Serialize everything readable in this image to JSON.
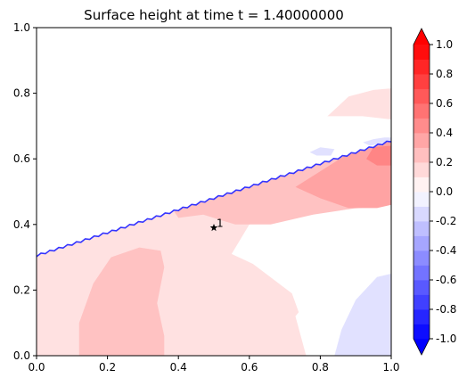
{
  "chart_data": {
    "type": "contourf",
    "title": "Surface height at time t =     1.40000000",
    "xlabel": "",
    "ylabel": "",
    "xlim": [
      0.0,
      1.0
    ],
    "ylim": [
      0.0,
      1.0
    ],
    "xticks": [
      "0.0",
      "0.2",
      "0.4",
      "0.6",
      "0.8",
      "1.0"
    ],
    "yticks": [
      "0.0",
      "0.2",
      "0.4",
      "0.6",
      "0.8",
      "1.0"
    ],
    "colormap": "bwr",
    "colorbar": {
      "levels": [
        -1.0,
        -0.9,
        -0.8,
        -0.7,
        -0.6,
        -0.5,
        -0.4,
        -0.3,
        -0.2,
        -0.1,
        0.0,
        0.1,
        0.2,
        0.3,
        0.4,
        0.5,
        0.6,
        0.7,
        0.8,
        0.9,
        1.0
      ],
      "ticks": [
        "-1.0",
        "-0.8",
        "-0.6",
        "-0.4",
        "-0.2",
        "0.0",
        "0.2",
        "0.4",
        "0.6",
        "0.8",
        "1.0"
      ],
      "extend": "both",
      "low_color": "#0000ff",
      "high_color": "#ff0000"
    },
    "shoreline": {
      "x": [
        0.0,
        1.0
      ],
      "y": [
        0.305,
        0.655
      ],
      "color": "#3333ff"
    },
    "regions": [
      {
        "level": 0.1,
        "color": "#ffe1e1",
        "points": [
          [
            0.0,
            0.0
          ],
          [
            0.76,
            0.0
          ],
          [
            0.76,
            0.07
          ],
          [
            0.72,
            0.19
          ],
          [
            0.61,
            0.28
          ],
          [
            0.55,
            0.31
          ],
          [
            0.6,
            0.4
          ],
          [
            0.82,
            0.44
          ],
          [
            1.0,
            0.46
          ],
          [
            1.0,
            0.655
          ],
          [
            0.0,
            0.305
          ]
        ]
      },
      {
        "level": 0.1,
        "color": "#ffe1e1",
        "points": [
          [
            0.82,
            0.73
          ],
          [
            0.88,
            0.79
          ],
          [
            0.95,
            0.81
          ],
          [
            1.0,
            0.815
          ],
          [
            1.0,
            0.72
          ],
          [
            0.92,
            0.73
          ]
        ]
      },
      {
        "level": 0.2,
        "color": "#ffc2c2",
        "points": [
          [
            0.12,
            0.0
          ],
          [
            0.36,
            0.0
          ],
          [
            0.36,
            0.06
          ],
          [
            0.34,
            0.16
          ],
          [
            0.36,
            0.27
          ],
          [
            0.35,
            0.32
          ],
          [
            0.29,
            0.33
          ],
          [
            0.21,
            0.3
          ],
          [
            0.16,
            0.22
          ],
          [
            0.12,
            0.1
          ]
        ]
      },
      {
        "level": 0.2,
        "color": "#ffc2c2",
        "points": [
          [
            0.4,
            0.42
          ],
          [
            0.47,
            0.43
          ],
          [
            0.56,
            0.4
          ],
          [
            0.66,
            0.4
          ],
          [
            0.78,
            0.43
          ],
          [
            0.9,
            0.45
          ],
          [
            1.0,
            0.46
          ],
          [
            1.0,
            0.655
          ],
          [
            0.387,
            0.441
          ]
        ]
      },
      {
        "level": 0.3,
        "color": "#ffa3a3",
        "points": [
          [
            0.73,
            0.514
          ],
          [
            0.8,
            0.48
          ],
          [
            0.88,
            0.45
          ],
          [
            0.96,
            0.45
          ],
          [
            1.0,
            0.46
          ],
          [
            1.0,
            0.655
          ],
          [
            0.87,
            0.61
          ]
        ]
      },
      {
        "level": 0.4,
        "color": "#ff8585",
        "points": [
          [
            0.93,
            0.6
          ],
          [
            0.96,
            0.58
          ],
          [
            1.0,
            0.58
          ],
          [
            1.0,
            0.64
          ],
          [
            0.95,
            0.636
          ]
        ]
      },
      {
        "level": 0.0,
        "color": "#ffffff",
        "points": [
          [
            0.76,
            0.0
          ],
          [
            1.0,
            0.0
          ],
          [
            1.0,
            0.3
          ],
          [
            0.88,
            0.25
          ],
          [
            0.79,
            0.2
          ],
          [
            0.73,
            0.12
          ]
        ]
      },
      {
        "level": -0.1,
        "color": "#e1e1ff",
        "points": [
          [
            0.84,
            0.0
          ],
          [
            1.0,
            0.0
          ],
          [
            1.0,
            0.25
          ],
          [
            0.96,
            0.24
          ],
          [
            0.9,
            0.17
          ],
          [
            0.86,
            0.08
          ]
        ]
      },
      {
        "level": -0.1,
        "color": "#e1e1ff",
        "points": [
          [
            0.77,
            0.62
          ],
          [
            0.8,
            0.635
          ],
          [
            0.84,
            0.63
          ],
          [
            0.83,
            0.61
          ],
          [
            0.79,
            0.61
          ]
        ]
      },
      {
        "level": -0.1,
        "color": "#e1e1ff",
        "points": [
          [
            0.92,
            0.65
          ],
          [
            0.95,
            0.66
          ],
          [
            0.98,
            0.665
          ],
          [
            1.0,
            0.665
          ],
          [
            1.0,
            0.655
          ],
          [
            0.94,
            0.64
          ]
        ]
      }
    ],
    "markers": [
      {
        "x": 0.5,
        "y": 0.39,
        "symbol": "star",
        "label": "1"
      }
    ]
  }
}
